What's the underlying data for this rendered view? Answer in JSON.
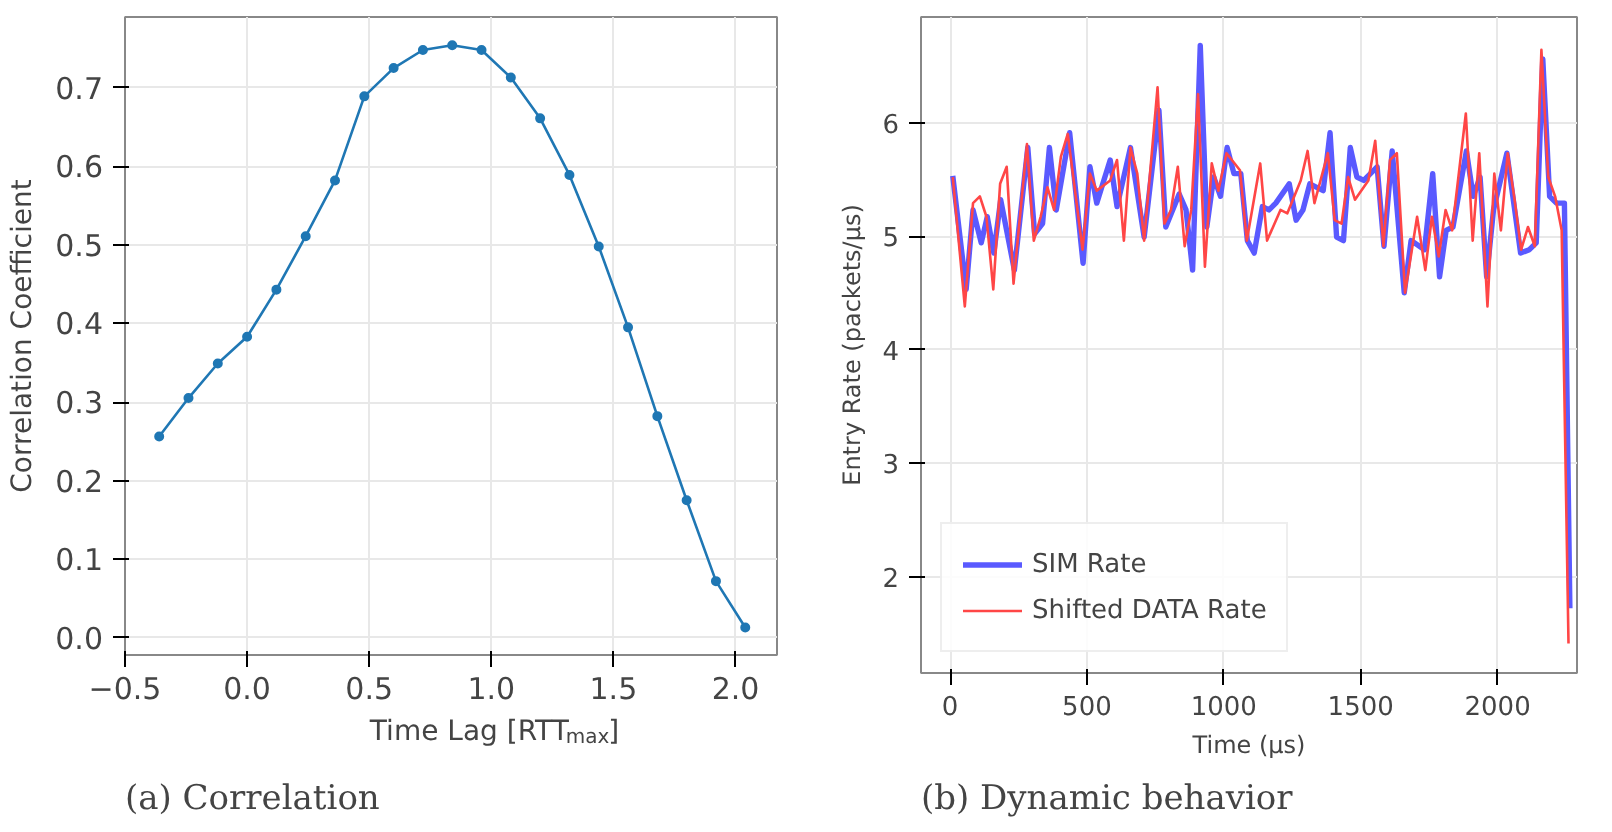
{
  "chart_data": [
    {
      "type": "line",
      "title": "(a) Correlation",
      "xlabel": "Time Lag [RTT$_{max}$]",
      "ylabel": "Correlation Coefficient",
      "x": [
        -0.36,
        -0.24,
        -0.12,
        0.0,
        0.12,
        0.24,
        0.36,
        0.48,
        0.6,
        0.72,
        0.84,
        0.96,
        1.08,
        1.2,
        1.32,
        1.44,
        1.56,
        1.68,
        1.8,
        1.92,
        2.04
      ],
      "series": [
        {
          "color": "#1f77b4",
          "values": [
            0.256,
            0.305,
            0.349,
            0.383,
            0.443,
            0.511,
            0.582,
            0.689,
            0.725,
            0.748,
            0.754,
            0.748,
            0.713,
            0.661,
            0.589,
            0.498,
            0.395,
            0.282,
            0.175,
            0.072,
            0.013
          ]
        }
      ],
      "xlim": [
        -0.5,
        2.17
      ],
      "ylim": [
        -0.022,
        0.79
      ],
      "xticks": [
        {
          "value": -0.5,
          "label": "−0.5"
        },
        {
          "value": 0,
          "label": "0.0"
        },
        {
          "value": 0.5,
          "label": "0.5"
        },
        {
          "value": 1,
          "label": "1.0"
        },
        {
          "value": 1.5,
          "label": "1.5"
        },
        {
          "value": 2,
          "label": "2.0"
        }
      ],
      "yticks": [
        {
          "value": 0,
          "label": "0.0"
        },
        {
          "value": 0.1,
          "label": "0.1"
        },
        {
          "value": 0.2,
          "label": "0.2"
        },
        {
          "value": 0.3,
          "label": "0.3"
        },
        {
          "value": 0.4,
          "label": "0.4"
        },
        {
          "value": 0.5,
          "label": "0.5"
        },
        {
          "value": 0.6,
          "label": "0.6"
        },
        {
          "value": 0.7,
          "label": "0.7"
        }
      ],
      "grid": true,
      "marker": "circle",
      "line_style": "solid",
      "legend": false
    },
    {
      "type": "line",
      "title": "(b) Dynamic behavior",
      "xlabel": "Time (µs)",
      "ylabel": "Entry Rate (packets/µs)",
      "series": [
        {
          "name": "SIM Rate",
          "color": "#5a5aff",
          "x": [
            10,
            59,
            84,
            114,
            136,
            160,
            185,
            235,
            284,
            309,
            338,
            363,
            388,
            437,
            486,
            511,
            536,
            585,
            610,
            659,
            709,
            763,
            788,
            837,
            862,
            886,
            914,
            938,
            963,
            988,
            1012,
            1037,
            1062,
            1086,
            1111,
            1141,
            1165,
            1190,
            1239,
            1264,
            1289,
            1314,
            1363,
            1388,
            1412,
            1437,
            1462,
            1486,
            1511,
            1560,
            1585,
            1615,
            1659,
            1684,
            1733,
            1763,
            1788,
            1812,
            1837,
            1886,
            1911,
            1936,
            1960,
            1985,
            2034,
            2084,
            2116,
            2141,
            2165,
            2190,
            2215,
            2244,
            2264
          ],
          "values": [
            5.53,
            4.53,
            5.23,
            4.94,
            5.17,
            4.85,
            5.32,
            4.7,
            5.78,
            5.02,
            5.11,
            5.78,
            5.23,
            5.91,
            4.76,
            5.61,
            5.29,
            5.67,
            5.26,
            5.78,
            4.99,
            6.11,
            5.08,
            5.37,
            5.23,
            4.7,
            6.68,
            5.08,
            5.52,
            5.35,
            5.78,
            5.55,
            5.55,
            4.96,
            4.85,
            5.26,
            5.23,
            5.29,
            5.46,
            5.14,
            5.23,
            5.46,
            5.4,
            5.91,
            4.99,
            4.96,
            5.78,
            5.52,
            5.49,
            5.61,
            4.91,
            5.75,
            4.5,
            4.96,
            4.88,
            5.55,
            4.64,
            5.05,
            5.08,
            5.75,
            5.35,
            5.52,
            4.64,
            5.23,
            5.73,
            4.85,
            4.88,
            4.94,
            6.56,
            5.35,
            5.29,
            5.29,
            1.72
          ]
        },
        {
          "name": "Shifted DATA Rate",
          "color": "#ff4646",
          "x": [
            10,
            54,
            84,
            109,
            133,
            158,
            183,
            207,
            232,
            281,
            306,
            331,
            356,
            380,
            405,
            430,
            484,
            511,
            536,
            585,
            610,
            635,
            659,
            684,
            709,
            758,
            783,
            807,
            832,
            857,
            881,
            906,
            931,
            956,
            980,
            1010,
            1059,
            1084,
            1133,
            1158,
            1207,
            1232,
            1281,
            1306,
            1331,
            1380,
            1405,
            1430,
            1454,
            1479,
            1528,
            1553,
            1583,
            1607,
            1632,
            1662,
            1706,
            1736,
            1760,
            1785,
            1810,
            1834,
            1884,
            1909,
            1933,
            1963,
            1988,
            2012,
            2037,
            2062,
            2086,
            2111,
            2136,
            2160,
            2185,
            2210,
            2234,
            2259
          ],
          "values": [
            5.52,
            4.38,
            5.29,
            5.35,
            5.17,
            4.53,
            5.46,
            5.61,
            4.58,
            5.81,
            4.96,
            5.17,
            5.43,
            5.23,
            5.7,
            5.9,
            4.88,
            5.55,
            5.4,
            5.49,
            5.67,
            4.96,
            5.78,
            5.55,
            4.96,
            6.31,
            5.11,
            5.23,
            5.61,
            4.91,
            5.23,
            6.25,
            4.73,
            5.64,
            5.4,
            5.73,
            5.58,
            4.96,
            5.64,
            4.96,
            5.23,
            5.2,
            5.49,
            5.75,
            5.29,
            5.73,
            5.14,
            5.11,
            5.52,
            5.32,
            5.49,
            5.84,
            4.91,
            5.67,
            5.73,
            4.5,
            5.17,
            4.7,
            5.17,
            4.82,
            5.23,
            5.05,
            6.08,
            4.96,
            5.73,
            4.38,
            5.55,
            5.05,
            5.73,
            5.32,
            4.88,
            5.08,
            4.91,
            6.64,
            5.52,
            5.35,
            5.05,
            1.41
          ]
        }
      ],
      "xlim": [
        -106,
        2290
      ],
      "ylim": [
        1.15,
        6.93
      ],
      "xticks": [
        0,
        500,
        1000,
        1500,
        2000
      ],
      "yticks": [
        2,
        3,
        4,
        5,
        6
      ],
      "grid": true,
      "marker": "none",
      "line_style": "solid",
      "legend": "bottom left"
    }
  ]
}
